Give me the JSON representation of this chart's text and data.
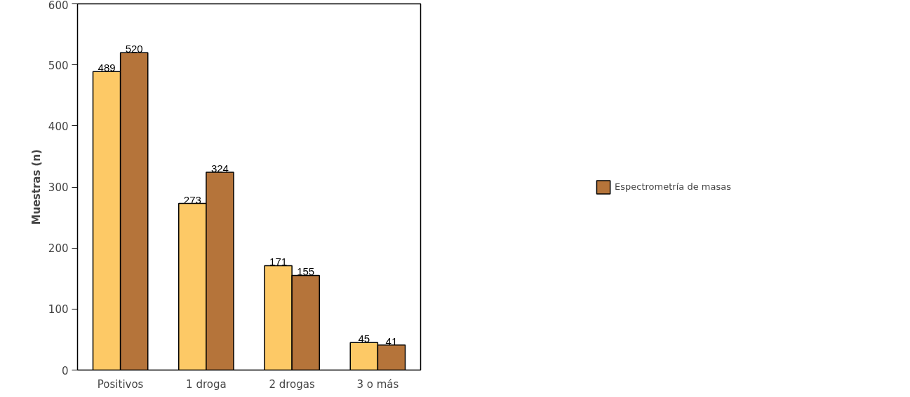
{
  "chart_data": {
    "type": "bar",
    "ylabel": "Muestras (n)",
    "categories": [
      "Positivos",
      "1 droga",
      "2 drogas",
      "3 o más"
    ],
    "series": [
      {
        "color": "#fdc966",
        "values": [
          489,
          273,
          171,
          45
        ]
      },
      {
        "name": "Espectrometría de masas",
        "color": "#b5743a",
        "values": [
          520,
          324,
          155,
          41
        ]
      }
    ],
    "ylim": [
      0,
      600
    ],
    "yticks": [
      0,
      100,
      200,
      300,
      400,
      500,
      600
    ],
    "grid": false,
    "legend": "right",
    "data_labels": true
  }
}
